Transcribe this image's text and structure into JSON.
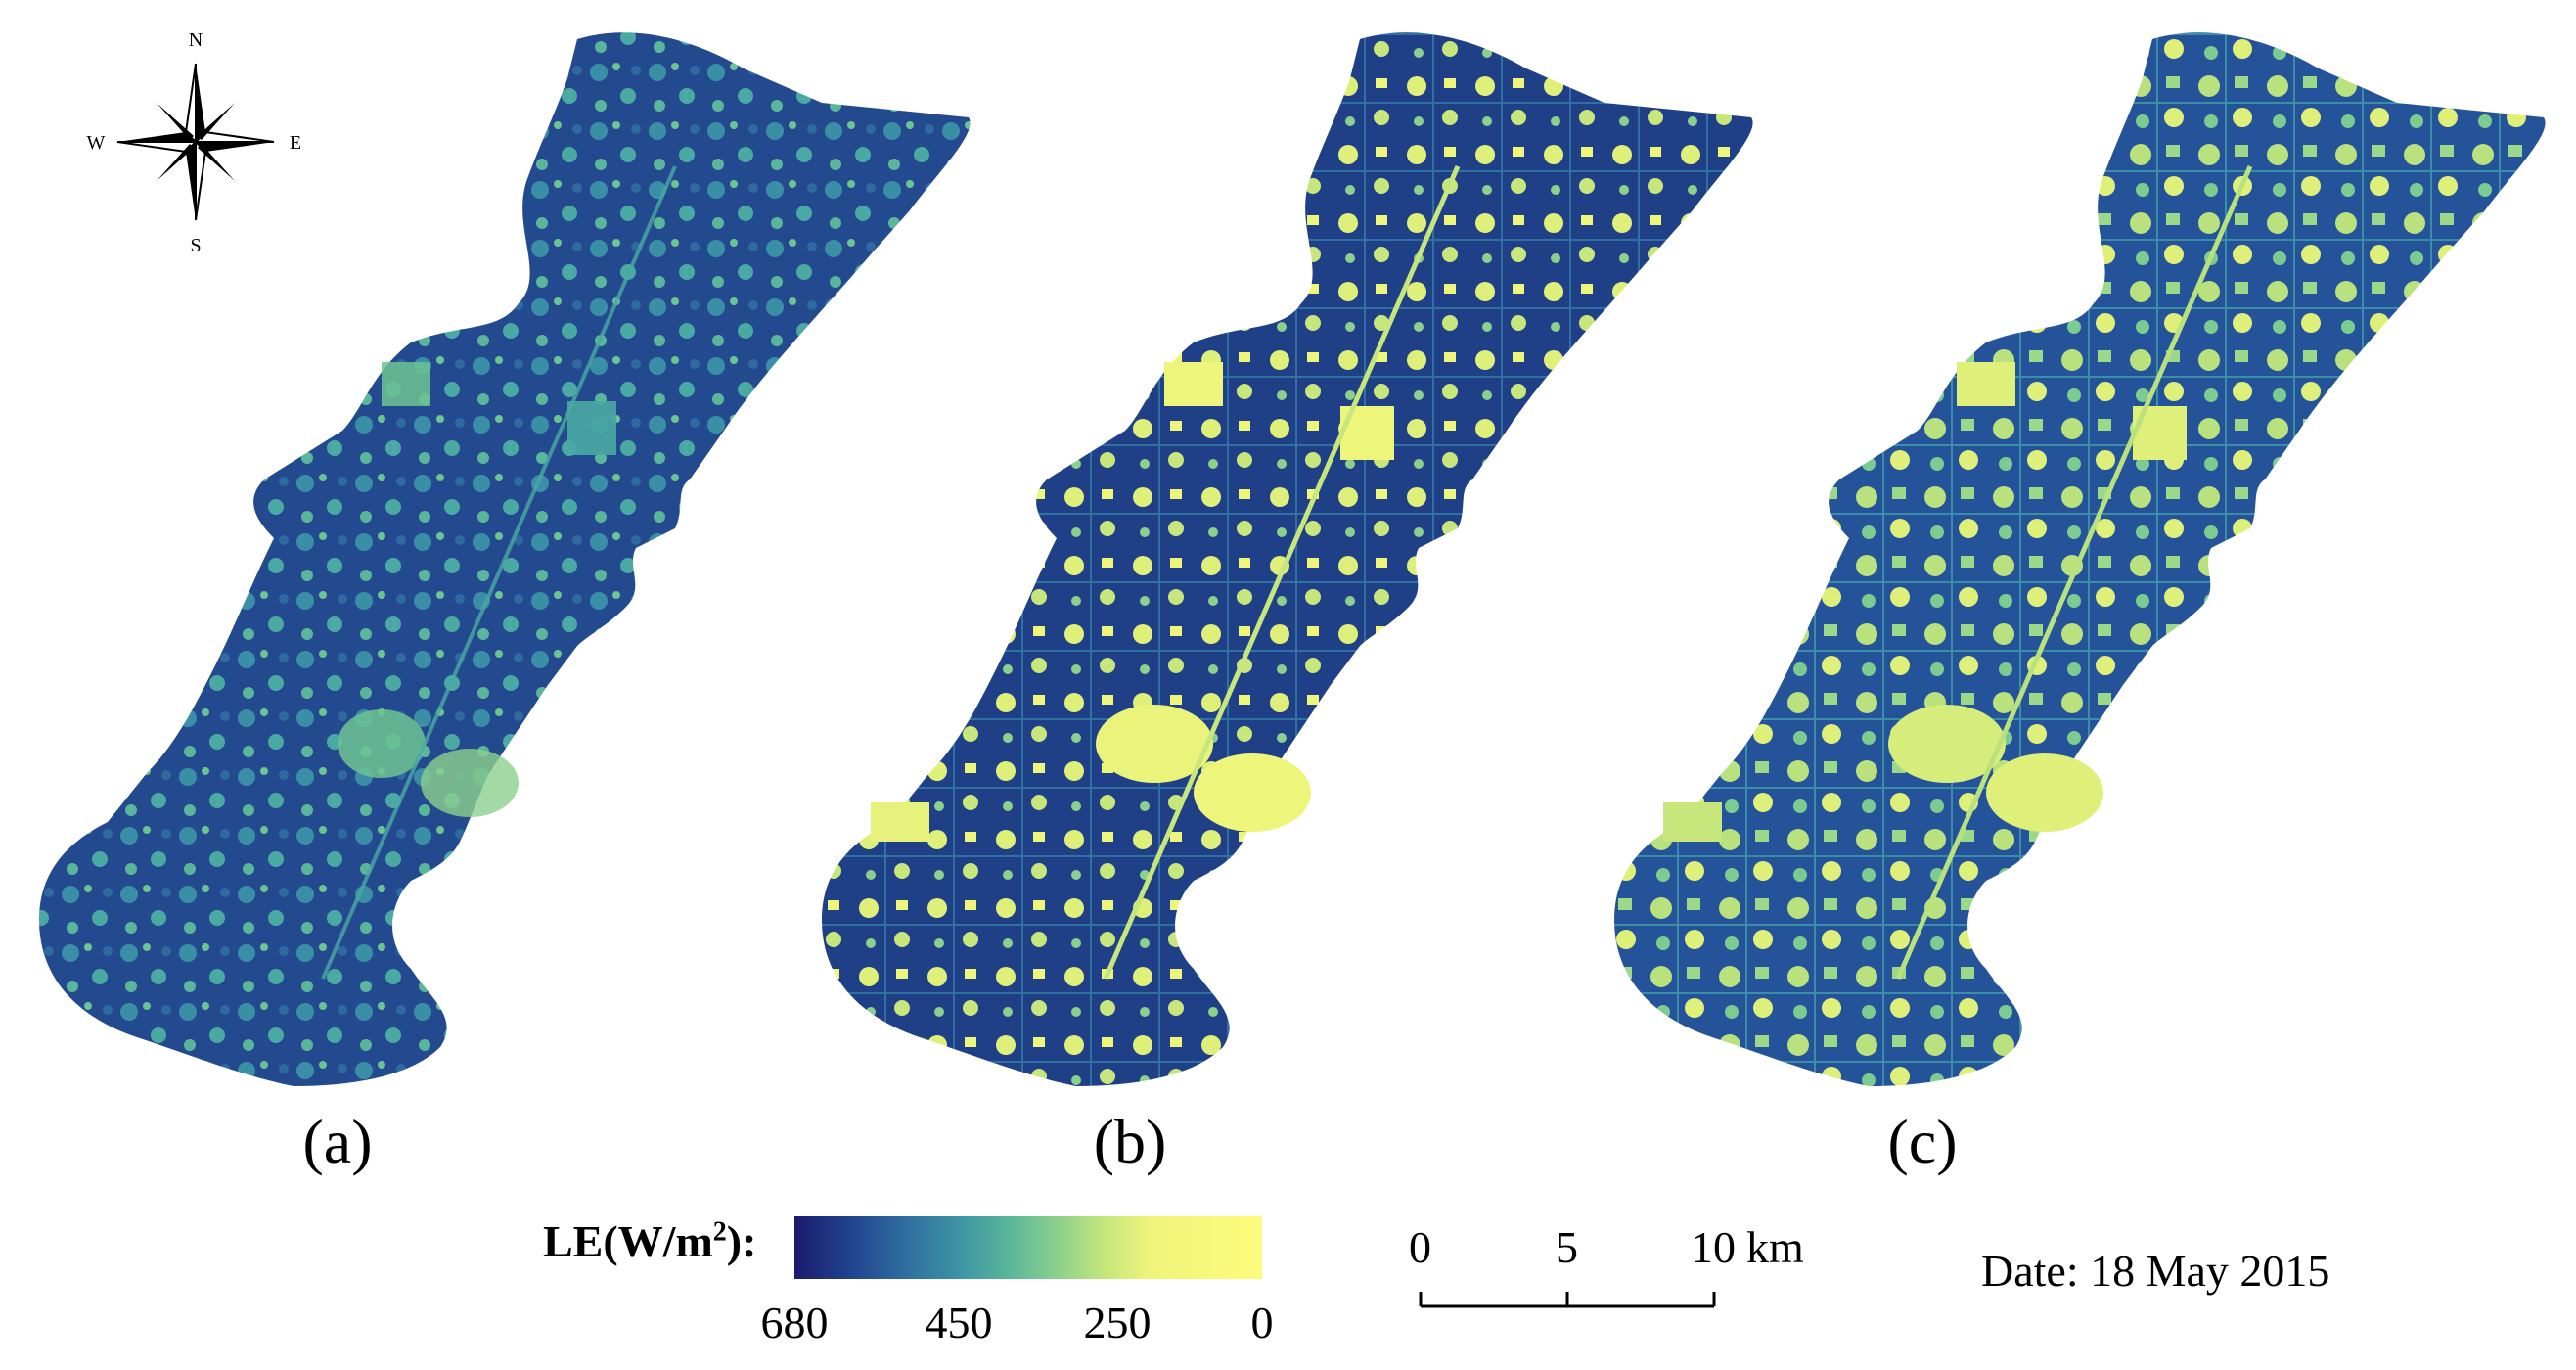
{
  "panels": [
    {
      "label": "(a)"
    },
    {
      "label": "(b)"
    },
    {
      "label": "(c)"
    }
  ],
  "compass": {
    "n": "N",
    "s": "S",
    "e": "E",
    "w": "W"
  },
  "legend": {
    "title_main": "LE(W/m",
    "title_sup": "2",
    "title_end": "):",
    "ticks": [
      "680",
      "450",
      "250",
      "0"
    ],
    "colors": {
      "high": "#1c1b6e",
      "mid": "#5ab69a",
      "low": "#fdfb7d"
    }
  },
  "scalebar": {
    "ticks": [
      "0",
      "5",
      "10"
    ],
    "unit": "km"
  },
  "date": "Date: 18 May 2015",
  "colors": {
    "dark": "#253a86",
    "mid": "#2d6fa1",
    "teal": "#3f96a4",
    "green": "#6cc393",
    "yellow": "#e9f37c"
  }
}
